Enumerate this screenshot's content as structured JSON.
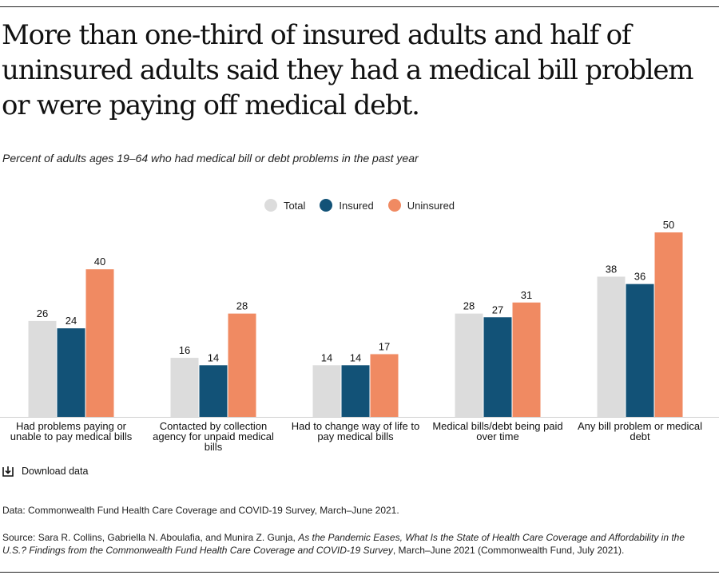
{
  "title": "More than one-third of insured adults and half of uninsured adults said they had a medical bill problem or were paying off medical debt.",
  "subtitle": "Percent of adults ages 19–64 who had medical bill or debt problems in the past year",
  "download_label": "Download data",
  "download_icon": "download-icon",
  "data_note": "Data: Commonwealth Fund Health Care Coverage and COVID-19 Survey, March–June 2021.",
  "source": {
    "prefix": "Source: Sara R. Collins, Gabriella N. Aboulafia, and Munira Z. Gunja, ",
    "italic": "As the Pandemic Eases, What Is the State of Health Care Coverage and Affordability in the U.S.? Findings from the Commonwealth Fund Health Care Coverage and COVID-19 Survey",
    "suffix": ", March–June 2021 (Commonwealth Fund, July 2021)."
  },
  "chart_data": {
    "type": "bar",
    "title": "More than one-third of insured adults and half of uninsured adults said they had a medical bill problem or were paying off medical debt.",
    "subtitle": "Percent of adults ages 19–64 who had medical bill or debt problems in the past year",
    "xlabel": "",
    "ylabel": "",
    "ylim": [
      0,
      50
    ],
    "grid": false,
    "legend_position": "top-center",
    "categories": [
      [
        "Had problems paying or",
        "unable to pay medical bills"
      ],
      [
        "Contacted by collection",
        "agency for unpaid medical",
        "bills"
      ],
      [
        "Had to change way of life to",
        "pay medical bills"
      ],
      [
        "Medical bills/debt being paid",
        "over time"
      ],
      [
        "Any bill problem or medical",
        "debt"
      ]
    ],
    "series": [
      {
        "name": "Total",
        "color": "#dcdcdc",
        "values": [
          26,
          16,
          14,
          28,
          38
        ]
      },
      {
        "name": "Insured",
        "color": "#125277",
        "values": [
          24,
          14,
          14,
          27,
          36
        ]
      },
      {
        "name": "Uninsured",
        "color": "#f08a62",
        "values": [
          40,
          28,
          17,
          31,
          50
        ]
      }
    ]
  }
}
